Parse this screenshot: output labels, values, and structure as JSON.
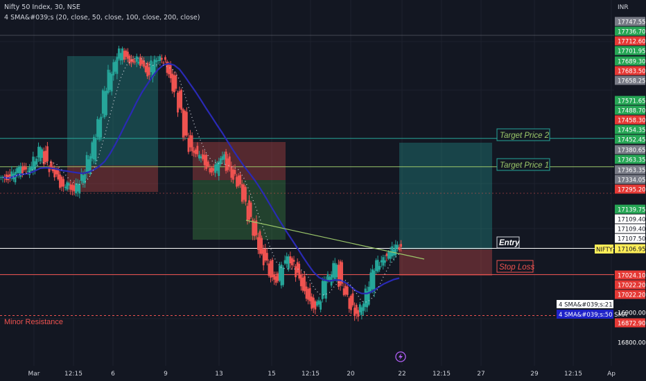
{
  "header": {
    "symbol_line": "Nifty 50 Index, 30, NSE",
    "indicator_line": "4 SMA&#039;s (20, close, 50, close, 100, close, 200, close)"
  },
  "price_axis": {
    "currency": "INR",
    "ticks": [
      "17747.55",
      "17736.70",
      "17712.60",
      "17701.95",
      "17689.30",
      "17683.50",
      "17658.25",
      "17571.65",
      "17488.70",
      "17458.30",
      "17454.35",
      "17452.45",
      "17380.65",
      "17363.35",
      "17363.35",
      "17334.05",
      "17295.20",
      "17139.75",
      "17109.40",
      "17109.40",
      "17107.50",
      "17106.95",
      "17024.10",
      "17022.20",
      "17022.20",
      "16900.00",
      "16872.90",
      "16800.00"
    ],
    "symbol_tag": "NIFTY",
    "sma_tag_1": "4 SMA&#039;s:21 SMA",
    "sma_tag_2": "4 SMA&#039;s:50 SMA"
  },
  "time_axis": {
    "labels": [
      "Mar",
      "12:15",
      "6",
      "9",
      "13",
      "15",
      "12:15",
      "20",
      "22",
      "12:15",
      "27",
      "29",
      "12:15",
      "Ap"
    ]
  },
  "annotations": {
    "target_2": "Target Price 2",
    "target_1": "Target Price 1",
    "entry": "Entry",
    "stop_loss": "Stop Loss",
    "minor_resistance": "Minor Resistance"
  },
  "colors": {
    "background": "#131722",
    "up": "#26a69a",
    "down": "#ef5350",
    "sma_long": "#2a2ab5",
    "sma_short": "#d1d4dc",
    "trendline": "#9cc86a",
    "tag_green": "#26a655",
    "tag_red": "#e53935",
    "tag_gray": "#787b86",
    "tag_yellow": "#ffee58"
  },
  "chart_data": {
    "type": "candlestick",
    "yscale": "linear",
    "ylim": [
      16760,
      17790
    ],
    "levels": {
      "target_price_2": 17452.45,
      "target_price_1": 17363.35,
      "entry": 17106.95,
      "stop_loss": 17024.1,
      "minor_resistance": 16900
    },
    "close_path": [
      17330,
      17325,
      17340,
      17360,
      17345,
      17360,
      17390,
      17420,
      17370,
      17350,
      17330,
      17300,
      17305,
      17290,
      17310,
      17340,
      17390,
      17450,
      17520,
      17600,
      17660,
      17700,
      17730,
      17710,
      17690,
      17700,
      17680,
      17650,
      17690,
      17700,
      17690,
      17650,
      17600,
      17540,
      17460,
      17420,
      17400,
      17390,
      17360,
      17340,
      17380,
      17400,
      17360,
      17330,
      17300,
      17250,
      17200,
      17150,
      17100,
      17060,
      17020,
      17000,
      17050,
      17080,
      17060,
      17020,
      16980,
      16950,
      16920,
      16950,
      17000,
      17020,
      17060,
      16990,
      16960,
      16920,
      16900,
      16930,
      16980,
      17030,
      17060,
      17080,
      17090,
      17110,
      17110
    ]
  }
}
